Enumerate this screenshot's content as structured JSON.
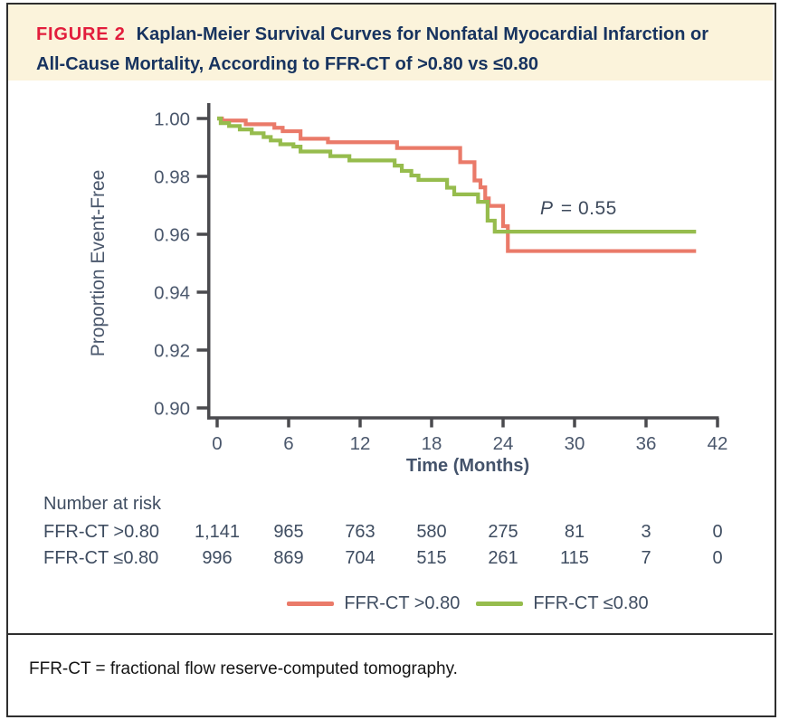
{
  "header": {
    "figure_label": "FIGURE 2",
    "title_line1": "Kaplan-Meier Survival Curves for Nonfatal Myocardial Infarction or",
    "title_line2": "All-Cause Mortality, According to FFR-CT of >0.80 vs ≤0.80"
  },
  "chart_data": {
    "type": "line",
    "subtype": "kaplan-meier-step-curves",
    "title": "",
    "xlabel": "Time (Months)",
    "ylabel": "Proportion Event-Free",
    "xlim": [
      0,
      42
    ],
    "ylim": [
      0.9,
      1.005
    ],
    "x_ticks": [
      0,
      6,
      12,
      18,
      24,
      30,
      36,
      42
    ],
    "y_ticks": [
      1.0,
      0.98,
      0.96,
      0.94,
      0.92,
      0.9
    ],
    "y_tick_labels": [
      "1.00",
      "0.98",
      "0.96",
      "0.94",
      "0.92",
      "0.90"
    ],
    "grid": false,
    "legend_position": "bottom-center",
    "annotation": {
      "p_italic": "P",
      "p_rest": " = 0.55"
    },
    "series": [
      {
        "name": "FFR-CT >0.80",
        "color": "#ea7a69",
        "end_month": 40.2,
        "final_value": 0.954,
        "steps": [
          [
            0,
            1.0
          ],
          [
            0.4,
            0.9993
          ],
          [
            2.4,
            0.998
          ],
          [
            4.8,
            0.9968
          ],
          [
            5.5,
            0.9956
          ],
          [
            7.0,
            0.993
          ],
          [
            9.3,
            0.9918
          ],
          [
            15.1,
            0.9898
          ],
          [
            20.4,
            0.9849
          ],
          [
            21.6,
            0.9786
          ],
          [
            22.1,
            0.9762
          ],
          [
            22.5,
            0.9724
          ],
          [
            22.8,
            0.9698
          ],
          [
            24.0,
            0.9628
          ],
          [
            24.4,
            0.9542
          ],
          [
            40.2,
            0.9542
          ]
        ]
      },
      {
        "name": "FFR-CT ≤0.80",
        "color": "#96bc4d",
        "end_month": 40.2,
        "final_value": 0.961,
        "steps": [
          [
            0,
            1.0
          ],
          [
            0.3,
            0.9984
          ],
          [
            1.0,
            0.9974
          ],
          [
            1.9,
            0.9962
          ],
          [
            2.9,
            0.9949
          ],
          [
            3.9,
            0.9936
          ],
          [
            4.5,
            0.9924
          ],
          [
            5.3,
            0.9911
          ],
          [
            6.4,
            0.9903
          ],
          [
            7.0,
            0.9886
          ],
          [
            9.5,
            0.987
          ],
          [
            11.1,
            0.9855
          ],
          [
            14.9,
            0.9837
          ],
          [
            15.5,
            0.9819
          ],
          [
            16.3,
            0.9803
          ],
          [
            16.9,
            0.9788
          ],
          [
            19.3,
            0.9761
          ],
          [
            19.9,
            0.9738
          ],
          [
            21.9,
            0.9712
          ],
          [
            22.7,
            0.9647
          ],
          [
            23.3,
            0.9609
          ],
          [
            40.2,
            0.9609
          ]
        ]
      }
    ]
  },
  "risk_table": {
    "heading": "Number at risk",
    "columns_months": [
      0,
      6,
      12,
      18,
      24,
      30,
      36,
      42
    ],
    "rows": [
      {
        "label": "FFR-CT >0.80",
        "values": [
          "1,141",
          "965",
          "763",
          "580",
          "275",
          "81",
          "3",
          "0"
        ]
      },
      {
        "label": "FFR-CT ≤0.80",
        "values": [
          "996",
          "869",
          "704",
          "515",
          "261",
          "115",
          "7",
          "0"
        ]
      }
    ]
  },
  "legend": {
    "items": [
      {
        "label": "FFR-CT >0.80",
        "color": "#ea7a69"
      },
      {
        "label": "FFR-CT ≤0.80",
        "color": "#96bc4d"
      }
    ]
  },
  "footer": {
    "note": "FFR-CT = fractional flow reserve-computed tomography."
  },
  "colors": {
    "figure_label_red": "#e21d3c",
    "title_navy": "#17335f",
    "header_bg": "#fbf3db",
    "curve_red": "#ea7a69",
    "curve_green": "#96bc4d",
    "axis": "#4a4a4e",
    "tick_text": "#4a576c",
    "frame_border": "#2e2e2e"
  }
}
